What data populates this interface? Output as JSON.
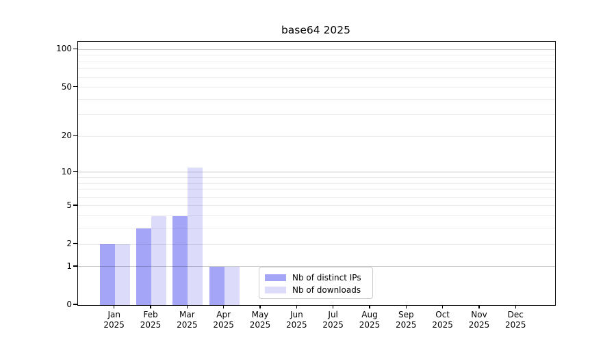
{
  "chart_data": {
    "type": "bar",
    "title": "base64 2025",
    "categories": [
      "Jan",
      "Feb",
      "Mar",
      "Apr",
      "May",
      "Jun",
      "Jul",
      "Aug",
      "Sep",
      "Oct",
      "Nov",
      "Dec"
    ],
    "category_year": "2025",
    "series": [
      {
        "name": "Nb of distinct IPs",
        "color": "#a5a5f8",
        "values": [
          2,
          3,
          4,
          1,
          0,
          0,
          0,
          0,
          0,
          0,
          0,
          0
        ]
      },
      {
        "name": "Nb of downloads",
        "color": "#dcdcfa",
        "values": [
          2,
          4,
          11,
          1,
          0,
          0,
          0,
          0,
          0,
          0,
          0,
          0
        ]
      }
    ],
    "yticks": [
      0,
      1,
      2,
      5,
      10,
      20,
      50,
      100
    ],
    "major_gridlines": [
      1,
      10,
      100
    ],
    "minor_gridlines": [
      2,
      3,
      4,
      5,
      6,
      7,
      8,
      9,
      20,
      30,
      40,
      50,
      60,
      70,
      80,
      90
    ],
    "scale": "log1p",
    "ylim": [
      0,
      115
    ],
    "xlabel": "",
    "ylabel": "",
    "grid": "horizontal",
    "legend_position": "lower center",
    "colors": {
      "axis": "#000000",
      "background": "#ffffff",
      "major_grid": "#c9c9c9",
      "minor_grid": "#ebebeb",
      "legend_border": "#cccccc",
      "text": "#000000"
    }
  }
}
